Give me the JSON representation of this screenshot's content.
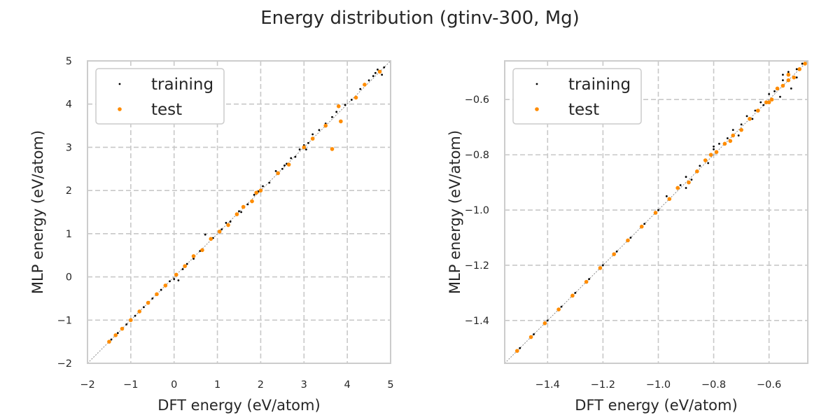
{
  "figure": {
    "title": "Energy distribution (gtinv-300, Mg)"
  },
  "colors": {
    "training": "#000000",
    "test": "#ff8c00",
    "grid": "#c8c8c8",
    "frame": "#cccccc",
    "diagonal": "#808080"
  },
  "chart_data": [
    {
      "type": "scatter",
      "title": "",
      "xlabel": "DFT energy (eV/atom)",
      "ylabel": "MLP energy (eV/atom)",
      "xlim": [
        -2,
        5
      ],
      "ylim": [
        -2,
        5
      ],
      "xticks": [
        -2,
        -1,
        0,
        1,
        2,
        3,
        4,
        5
      ],
      "yticks": [
        -2,
        -1,
        0,
        1,
        2,
        3,
        4,
        5
      ],
      "xtick_labels": [
        "−2",
        "−1",
        "0",
        "1",
        "2",
        "3",
        "4",
        "5"
      ],
      "ytick_labels": [
        "−2",
        "−1",
        "0",
        "1",
        "2",
        "3",
        "4",
        "5"
      ],
      "grid": true,
      "legend": {
        "position": "top-left",
        "entries": [
          "training",
          "test"
        ]
      },
      "reference_line": "y = x",
      "series": [
        {
          "name": "training",
          "points": [
            [
              -1.45,
              -1.45
            ],
            [
              -1.3,
              -1.3
            ],
            [
              -1.1,
              -1.1
            ],
            [
              -0.9,
              -0.9
            ],
            [
              -0.7,
              -0.7
            ],
            [
              -0.5,
              -0.5
            ],
            [
              -0.3,
              -0.3
            ],
            [
              -0.1,
              -0.1
            ],
            [
              0.0,
              -0.05
            ],
            [
              0.1,
              -0.08
            ],
            [
              0.2,
              0.18
            ],
            [
              0.3,
              0.3
            ],
            [
              0.45,
              0.42
            ],
            [
              0.6,
              0.6
            ],
            [
              0.72,
              0.98
            ],
            [
              0.9,
              0.9
            ],
            [
              1.1,
              1.1
            ],
            [
              1.2,
              1.25
            ],
            [
              1.3,
              1.28
            ],
            [
              1.5,
              1.52
            ],
            [
              1.7,
              1.68
            ],
            [
              1.85,
              1.9
            ],
            [
              1.95,
              1.98
            ],
            [
              2.05,
              2.1
            ],
            [
              2.2,
              2.18
            ],
            [
              2.35,
              2.45
            ],
            [
              2.5,
              2.5
            ],
            [
              2.6,
              2.62
            ],
            [
              2.7,
              2.75
            ],
            [
              2.8,
              2.78
            ],
            [
              2.9,
              2.95
            ],
            [
              3.0,
              3.05
            ],
            [
              3.1,
              3.1
            ],
            [
              3.2,
              3.3
            ],
            [
              3.35,
              3.4
            ],
            [
              3.5,
              3.55
            ],
            [
              3.65,
              3.7
            ],
            [
              3.75,
              3.82
            ],
            [
              3.95,
              3.98
            ],
            [
              4.1,
              4.1
            ],
            [
              4.3,
              4.35
            ],
            [
              4.5,
              4.55
            ],
            [
              4.6,
              4.65
            ],
            [
              4.65,
              4.72
            ],
            [
              4.7,
              4.8
            ],
            [
              4.85,
              4.85
            ],
            [
              4.8,
              4.68
            ],
            [
              3.05,
              2.95
            ],
            [
              2.55,
              2.58
            ],
            [
              1.55,
              1.5
            ]
          ]
        },
        {
          "name": "test",
          "points": [
            [
              -1.5,
              -1.5
            ],
            [
              -1.35,
              -1.35
            ],
            [
              -1.2,
              -1.2
            ],
            [
              -1.0,
              -1.0
            ],
            [
              -0.8,
              -0.8
            ],
            [
              -0.6,
              -0.6
            ],
            [
              -0.4,
              -0.4
            ],
            [
              -0.2,
              -0.2
            ],
            [
              0.05,
              0.05
            ],
            [
              0.25,
              0.25
            ],
            [
              0.45,
              0.48
            ],
            [
              0.65,
              0.62
            ],
            [
              0.85,
              0.88
            ],
            [
              1.05,
              1.05
            ],
            [
              1.25,
              1.2
            ],
            [
              1.45,
              1.45
            ],
            [
              1.6,
              1.62
            ],
            [
              1.8,
              1.75
            ],
            [
              1.9,
              1.95
            ],
            [
              2.0,
              2.0
            ],
            [
              2.4,
              2.4
            ],
            [
              2.65,
              2.6
            ],
            [
              3.0,
              3.0
            ],
            [
              3.2,
              3.2
            ],
            [
              3.5,
              3.5
            ],
            [
              3.65,
              2.96
            ],
            [
              3.8,
              3.95
            ],
            [
              3.85,
              3.6
            ],
            [
              4.2,
              4.15
            ],
            [
              4.4,
              4.45
            ],
            [
              4.75,
              4.75
            ]
          ]
        }
      ]
    },
    {
      "type": "scatter",
      "title": "",
      "xlabel": "DFT energy (eV/atom)",
      "ylabel": "MLP energy (eV/atom)",
      "xlim": [
        -1.555,
        -0.46
      ],
      "ylim": [
        -1.555,
        -0.46
      ],
      "xticks": [
        -1.4,
        -1.2,
        -1.0,
        -0.8,
        -0.6
      ],
      "yticks": [
        -1.4,
        -1.2,
        -1.0,
        -0.8,
        -0.6
      ],
      "xtick_labels": [
        "−1.4",
        "−1.2",
        "−1.0",
        "−0.8",
        "−0.6"
      ],
      "ytick_labels": [
        "−1.4",
        "−1.2",
        "−1.0",
        "−0.8",
        "−0.6"
      ],
      "grid": true,
      "legend": {
        "position": "top-left",
        "entries": [
          "training",
          "test"
        ]
      },
      "reference_line": "y = x",
      "series": [
        {
          "name": "training",
          "points": [
            [
              -1.5,
              -1.5
            ],
            [
              -1.45,
              -1.45
            ],
            [
              -1.4,
              -1.4
            ],
            [
              -1.35,
              -1.35
            ],
            [
              -1.3,
              -1.3
            ],
            [
              -1.25,
              -1.25
            ],
            [
              -1.2,
              -1.2
            ],
            [
              -1.15,
              -1.15
            ],
            [
              -1.1,
              -1.1
            ],
            [
              -1.05,
              -1.05
            ],
            [
              -1.0,
              -1.0
            ],
            [
              -0.97,
              -0.95
            ],
            [
              -0.92,
              -0.91
            ],
            [
              -0.9,
              -0.88
            ],
            [
              -0.88,
              -0.89
            ],
            [
              -0.85,
              -0.84
            ],
            [
              -0.82,
              -0.83
            ],
            [
              -0.8,
              -0.78
            ],
            [
              -0.78,
              -0.76
            ],
            [
              -0.75,
              -0.74
            ],
            [
              -0.73,
              -0.71
            ],
            [
              -0.7,
              -0.69
            ],
            [
              -0.68,
              -0.66
            ],
            [
              -0.65,
              -0.64
            ],
            [
              -0.63,
              -0.61
            ],
            [
              -0.6,
              -0.58
            ],
            [
              -0.58,
              -0.57
            ],
            [
              -0.55,
              -0.53
            ],
            [
              -0.53,
              -0.5
            ],
            [
              -0.5,
              -0.49
            ],
            [
              -0.48,
              -0.47
            ],
            [
              -0.52,
              -0.56
            ],
            [
              -0.56,
              -0.59
            ],
            [
              -0.62,
              -0.62
            ],
            [
              -0.8,
              -0.77
            ],
            [
              -0.9,
              -0.92
            ],
            [
              -0.55,
              -0.51
            ],
            [
              -0.5,
              -0.52
            ],
            [
              -0.66,
              -0.67
            ],
            [
              -0.71,
              -0.73
            ]
          ]
        },
        {
          "name": "test",
          "points": [
            [
              -1.51,
              -1.51
            ],
            [
              -1.46,
              -1.46
            ],
            [
              -1.41,
              -1.41
            ],
            [
              -1.36,
              -1.36
            ],
            [
              -1.31,
              -1.31
            ],
            [
              -1.26,
              -1.26
            ],
            [
              -1.21,
              -1.21
            ],
            [
              -1.16,
              -1.16
            ],
            [
              -1.11,
              -1.11
            ],
            [
              -1.06,
              -1.06
            ],
            [
              -1.01,
              -1.01
            ],
            [
              -0.96,
              -0.96
            ],
            [
              -0.93,
              -0.92
            ],
            [
              -0.89,
              -0.9
            ],
            [
              -0.86,
              -0.86
            ],
            [
              -0.83,
              -0.82
            ],
            [
              -0.79,
              -0.79
            ],
            [
              -0.76,
              -0.76
            ],
            [
              -0.73,
              -0.73
            ],
            [
              -0.7,
              -0.71
            ],
            [
              -0.67,
              -0.67
            ],
            [
              -0.64,
              -0.64
            ],
            [
              -0.61,
              -0.61
            ],
            [
              -0.59,
              -0.6
            ],
            [
              -0.57,
              -0.56
            ],
            [
              -0.55,
              -0.55
            ],
            [
              -0.53,
              -0.53
            ],
            [
              -0.51,
              -0.52
            ],
            [
              -0.49,
              -0.49
            ],
            [
              -0.47,
              -0.47
            ],
            [
              -0.53,
              -0.51
            ],
            [
              -0.6,
              -0.61
            ],
            [
              -0.74,
              -0.75
            ],
            [
              -0.81,
              -0.8
            ]
          ]
        }
      ]
    }
  ]
}
